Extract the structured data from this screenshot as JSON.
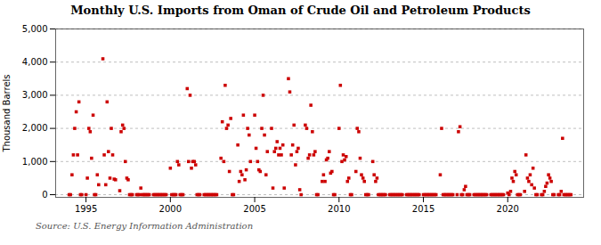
{
  "chart_data": {
    "type": "scatter",
    "title": "Monthly U.S. Imports from Oman of Crude Oil and Petroleum Products",
    "ylabel": "Thousand Barrels",
    "annotations": [
      "Source: U.S. Energy Information Administration"
    ],
    "color": "#cc0000",
    "marker": "square",
    "grid": true,
    "xlim": [
      1993.2,
      2024.5
    ],
    "ylim": [
      -80,
      5000
    ],
    "xticks": [
      1995,
      2000,
      2005,
      2010,
      2015,
      2020
    ],
    "yticks": [
      0,
      {
        "value": 1000,
        "label": "1,000"
      },
      {
        "value": 2000,
        "label": "2,000"
      },
      {
        "value": 3000,
        "label": "3,000"
      },
      {
        "value": 4000,
        "label": "4,000"
      },
      {
        "value": 5000,
        "label": "5,000"
      }
    ],
    "x": [
      1994.0,
      1994.08,
      1994.17,
      1994.25,
      1994.33,
      1994.42,
      1994.5,
      1994.58,
      1994.67,
      1994.75,
      1995.0,
      1995.08,
      1995.17,
      1995.25,
      1995.33,
      1995.42,
      1995.5,
      1995.58,
      1995.67,
      1995.75,
      1996.0,
      1996.08,
      1996.17,
      1996.25,
      1996.33,
      1996.42,
      1996.5,
      1996.58,
      1996.67,
      1996.75,
      1997.0,
      1997.08,
      1997.17,
      1997.25,
      1997.33,
      1997.42,
      1997.5,
      1997.58,
      1997.67,
      1997.75,
      1998.0,
      1998.08,
      1998.17,
      1998.25,
      1998.33,
      1998.42,
      1998.5,
      1998.58,
      1998.67,
      1998.75,
      1999.0,
      1999.08,
      1999.17,
      1999.25,
      1999.33,
      1999.42,
      1999.5,
      1999.58,
      1999.67,
      1999.75,
      2000.0,
      2000.08,
      2000.17,
      2000.25,
      2000.33,
      2000.42,
      2000.5,
      2000.58,
      2000.67,
      2000.75,
      2001.0,
      2001.08,
      2001.17,
      2001.25,
      2001.33,
      2001.42,
      2001.5,
      2001.58,
      2001.67,
      2001.75,
      2002.0,
      2002.08,
      2002.17,
      2002.25,
      2002.33,
      2002.42,
      2002.5,
      2002.58,
      2002.67,
      2002.75,
      2003.0,
      2003.08,
      2003.17,
      2003.25,
      2003.33,
      2003.42,
      2003.5,
      2003.58,
      2003.67,
      2003.75,
      2004.0,
      2004.08,
      2004.17,
      2004.25,
      2004.33,
      2004.42,
      2004.5,
      2004.58,
      2004.67,
      2004.75,
      2005.0,
      2005.08,
      2005.17,
      2005.25,
      2005.33,
      2005.42,
      2005.5,
      2005.58,
      2005.67,
      2005.75,
      2006.0,
      2006.08,
      2006.17,
      2006.25,
      2006.33,
      2006.42,
      2006.5,
      2006.58,
      2006.67,
      2006.75,
      2007.0,
      2007.08,
      2007.17,
      2007.25,
      2007.33,
      2007.42,
      2007.5,
      2007.58,
      2007.67,
      2007.75,
      2008.0,
      2008.08,
      2008.17,
      2008.25,
      2008.33,
      2008.42,
      2008.5,
      2008.58,
      2008.67,
      2008.75,
      2009.0,
      2009.08,
      2009.17,
      2009.25,
      2009.33,
      2009.42,
      2009.5,
      2009.58,
      2009.67,
      2009.75,
      2010.0,
      2010.08,
      2010.17,
      2010.25,
      2010.33,
      2010.42,
      2010.5,
      2010.58,
      2010.67,
      2010.75,
      2011.0,
      2011.08,
      2011.17,
      2011.25,
      2011.33,
      2011.42,
      2011.5,
      2011.58,
      2011.67,
      2011.75,
      2012.0,
      2012.08,
      2012.17,
      2012.25,
      2012.33,
      2012.42,
      2012.5,
      2012.58,
      2012.67,
      2012.75,
      2013.0,
      2013.08,
      2013.17,
      2013.25,
      2013.33,
      2013.42,
      2013.5,
      2013.58,
      2013.67,
      2013.75,
      2014.0,
      2014.08,
      2014.17,
      2014.25,
      2014.33,
      2014.42,
      2014.5,
      2014.58,
      2014.67,
      2014.75,
      2015.0,
      2015.08,
      2015.17,
      2015.25,
      2015.33,
      2015.42,
      2015.5,
      2015.58,
      2015.67,
      2015.75,
      2016.0,
      2016.08,
      2016.17,
      2016.25,
      2016.33,
      2016.42,
      2016.5,
      2016.58,
      2016.67,
      2016.75,
      2017.0,
      2017.08,
      2017.17,
      2017.25,
      2017.33,
      2017.42,
      2017.5,
      2017.58,
      2017.67,
      2017.75,
      2018.0,
      2018.08,
      2018.17,
      2018.25,
      2018.33,
      2018.42,
      2018.5,
      2018.58,
      2018.67,
      2018.75,
      2019.0,
      2019.08,
      2019.17,
      2019.25,
      2019.33,
      2019.42,
      2019.5,
      2019.58,
      2019.67,
      2019.75,
      2020.0,
      2020.08,
      2020.17,
      2020.25,
      2020.33,
      2020.42,
      2020.5,
      2020.58,
      2020.67,
      2020.75,
      2021.0,
      2021.08,
      2021.17,
      2021.25,
      2021.33,
      2021.42,
      2021.5,
      2021.58,
      2021.67,
      2021.75,
      2022.0,
      2022.08,
      2022.17,
      2022.25,
      2022.33,
      2022.42,
      2022.5,
      2022.58,
      2022.67,
      2022.75,
      2023.0,
      2023.08,
      2023.17,
      2023.25,
      2023.33,
      2023.42,
      2023.5,
      2023.58,
      2023.67,
      2023.75
    ],
    "values": [
      0,
      0,
      600,
      1200,
      2000,
      2500,
      1200,
      2800,
      0,
      0,
      0,
      500,
      2000,
      1900,
      1100,
      2400,
      0,
      0,
      600,
      300,
      4100,
      1200,
      300,
      2800,
      1300,
      500,
      2000,
      1200,
      470,
      450,
      120,
      1900,
      2100,
      2000,
      1000,
      500,
      450,
      0,
      0,
      0,
      0,
      0,
      0,
      200,
      0,
      0,
      0,
      0,
      0,
      0,
      0,
      0,
      0,
      0,
      0,
      0,
      0,
      0,
      0,
      0,
      800,
      0,
      0,
      0,
      0,
      1000,
      900,
      0,
      0,
      0,
      3200,
      1000,
      3000,
      800,
      1000,
      1000,
      900,
      0,
      0,
      0,
      0,
      0,
      0,
      0,
      0,
      0,
      0,
      0,
      0,
      0,
      1100,
      2200,
      1000,
      3300,
      2000,
      2100,
      700,
      2300,
      0,
      0,
      1500,
      400,
      700,
      600,
      2400,
      450,
      750,
      2000,
      1800,
      1000,
      2400,
      1400,
      1000,
      750,
      700,
      2000,
      3000,
      1800,
      600,
      1300,
      2000,
      200,
      1300,
      1400,
      1600,
      1200,
      1400,
      1200,
      1500,
      200,
      3500,
      3100,
      1200,
      1500,
      2100,
      900,
      1300,
      1400,
      150,
      0,
      2100,
      2000,
      1100,
      1200,
      2700,
      1900,
      1200,
      1300,
      0,
      0,
      400,
      600,
      400,
      1050,
      1100,
      1300,
      650,
      700,
      0,
      0,
      2000,
      3300,
      1000,
      1200,
      1050,
      1150,
      400,
      500,
      0,
      0,
      700,
      2000,
      1900,
      1100,
      600,
      500,
      400,
      0,
      0,
      0,
      1000,
      600,
      400,
      500,
      0,
      0,
      0,
      0,
      0,
      0,
      0,
      0,
      0,
      0,
      0,
      0,
      0,
      0,
      0,
      0,
      0,
      0,
      0,
      0,
      0,
      0,
      0,
      0,
      0,
      0,
      0,
      0,
      0,
      0,
      0,
      0,
      0,
      0,
      0,
      0,
      600,
      2000,
      0,
      0,
      0,
      0,
      0,
      0,
      0,
      0,
      0,
      1900,
      2050,
      0,
      0,
      150,
      250,
      0,
      0,
      0,
      0,
      0,
      0,
      0,
      0,
      0,
      0,
      0,
      0,
      0,
      0,
      0,
      0,
      0,
      0,
      0,
      0,
      0,
      0,
      0,
      50,
      0,
      100,
      500,
      400,
      700,
      600,
      0,
      0,
      0,
      100,
      1200,
      500,
      400,
      600,
      300,
      800,
      200,
      0,
      0,
      0,
      0,
      100,
      250,
      350,
      600,
      500,
      400,
      0,
      0,
      0,
      0,
      100,
      1700,
      0,
      0,
      0,
      0,
      0,
      0
    ]
  }
}
